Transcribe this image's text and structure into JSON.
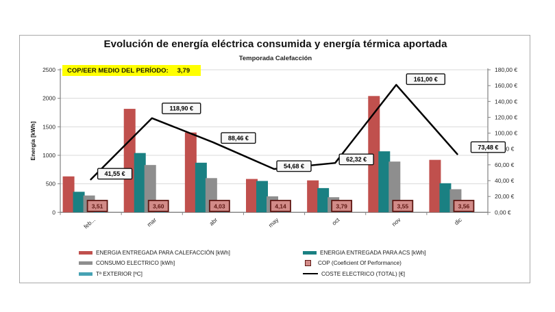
{
  "header": {
    "title": "Evolución de energía eléctrica consumida y energía térmica aportada",
    "subtitle": "Temporada Calefacción"
  },
  "banner": {
    "label": "COP/EER MEDIO DEL PERÍODO:",
    "value": "3,79",
    "background": "#ffff00"
  },
  "chart_data": {
    "type": "bar",
    "subtype": "clustered bars + line on secondary axis",
    "categories": [
      "feb...",
      "mar",
      "abr",
      "may",
      "oct",
      "nov",
      "dic"
    ],
    "series": [
      {
        "key": "calefaccion",
        "name": "ENERGIA ENTREGADA PARA CALEFACCIÓN [kWh]",
        "type": "bar",
        "axis": "left",
        "color": "#c0504d",
        "values": [
          630,
          1815,
          1400,
          585,
          560,
          2040,
          920
        ]
      },
      {
        "key": "acs",
        "name": "ENERGIA ENTREGADA PARA ACS [kWh]",
        "type": "bar",
        "axis": "left",
        "color": "#1a8082",
        "values": [
          360,
          1040,
          870,
          550,
          425,
          1070,
          510
        ]
      },
      {
        "key": "consumo",
        "name": "CONSUMO ELECTRICO [kWh]",
        "type": "bar",
        "axis": "left",
        "color": "#8e8e8e",
        "values": [
          295,
          830,
          600,
          280,
          265,
          890,
          405
        ]
      },
      {
        "key": "t_exterior",
        "name": "Tª EXTERIOR [ºC]",
        "type": "bar",
        "axis": "left",
        "color": "#46a2b4",
        "values": [
          7,
          9,
          12,
          16,
          14,
          8,
          7
        ]
      },
      {
        "key": "cop",
        "name": "COP (Coeficient Of Performance)",
        "type": "point-label",
        "box_fill": "#d28b88",
        "box_border": "#5e1712",
        "labels": [
          "3,51",
          "3,60",
          "4,03",
          "4,14",
          "3,79",
          "3,55",
          "3,56"
        ]
      },
      {
        "key": "coste",
        "name": "COSTE ELECTRICO (TOTAL) [€]",
        "type": "line",
        "axis": "right",
        "color": "#000000",
        "values": [
          41.55,
          118.9,
          88.46,
          54.68,
          62.32,
          161.0,
          73.48
        ],
        "labels": [
          "41,55 €",
          "118,90 €",
          "88,46 €",
          "54,68 €",
          "62,32 €",
          "161,00 €",
          "73,48 €"
        ],
        "label_offsets": [
          [
            10,
            -8
          ],
          [
            15,
            -14
          ],
          [
            12,
            -6
          ],
          [
            4,
            -4
          ],
          [
            6,
            -5
          ],
          [
            15,
            -8
          ],
          [
            20,
            -10
          ]
        ]
      }
    ],
    "left_axis": {
      "title": "Energía [kWh]",
      "min": 0,
      "max": 2500,
      "step": 500,
      "tick_labels": [
        "0",
        "500",
        "1000",
        "1500",
        "2000",
        "2500"
      ]
    },
    "right_axis": {
      "min": 0,
      "max": 180,
      "step": 20,
      "tick_labels": [
        "0,00 €",
        "20,00 €",
        "40,00 €",
        "60,00 €",
        "80,00 €",
        "100,00 €",
        "120,00 €",
        "140,00 €",
        "160,00 €",
        "180,00 €"
      ]
    },
    "grid": true,
    "grid_color": "#d9d9d9",
    "axis_color": "#808080",
    "legend_position": "bottom"
  },
  "legend": {
    "left_column": [
      {
        "label": "ENERGIA ENTREGADA PARA CALEFACCIÓN [kWh]",
        "swatch": "bar",
        "color": "#c0504d"
      },
      {
        "label": "CONSUMO ELECTRICO [kWh]",
        "swatch": "bar",
        "color": "#8e8e8e"
      },
      {
        "label": "Tª EXTERIOR [ºC]",
        "swatch": "bar",
        "color": "#46a2b4"
      }
    ],
    "right_column": [
      {
        "label": "ENERGIA ENTREGADA PARA ACS [kWh]",
        "swatch": "bar",
        "color": "#1a8082"
      },
      {
        "label": "COP (Coeficient Of Performance)",
        "swatch": "box",
        "color": "#d28b88",
        "border": "#5e1712"
      },
      {
        "label": "COSTE ELECTRICO (TOTAL) [€]",
        "swatch": "line",
        "color": "#000000"
      }
    ]
  }
}
